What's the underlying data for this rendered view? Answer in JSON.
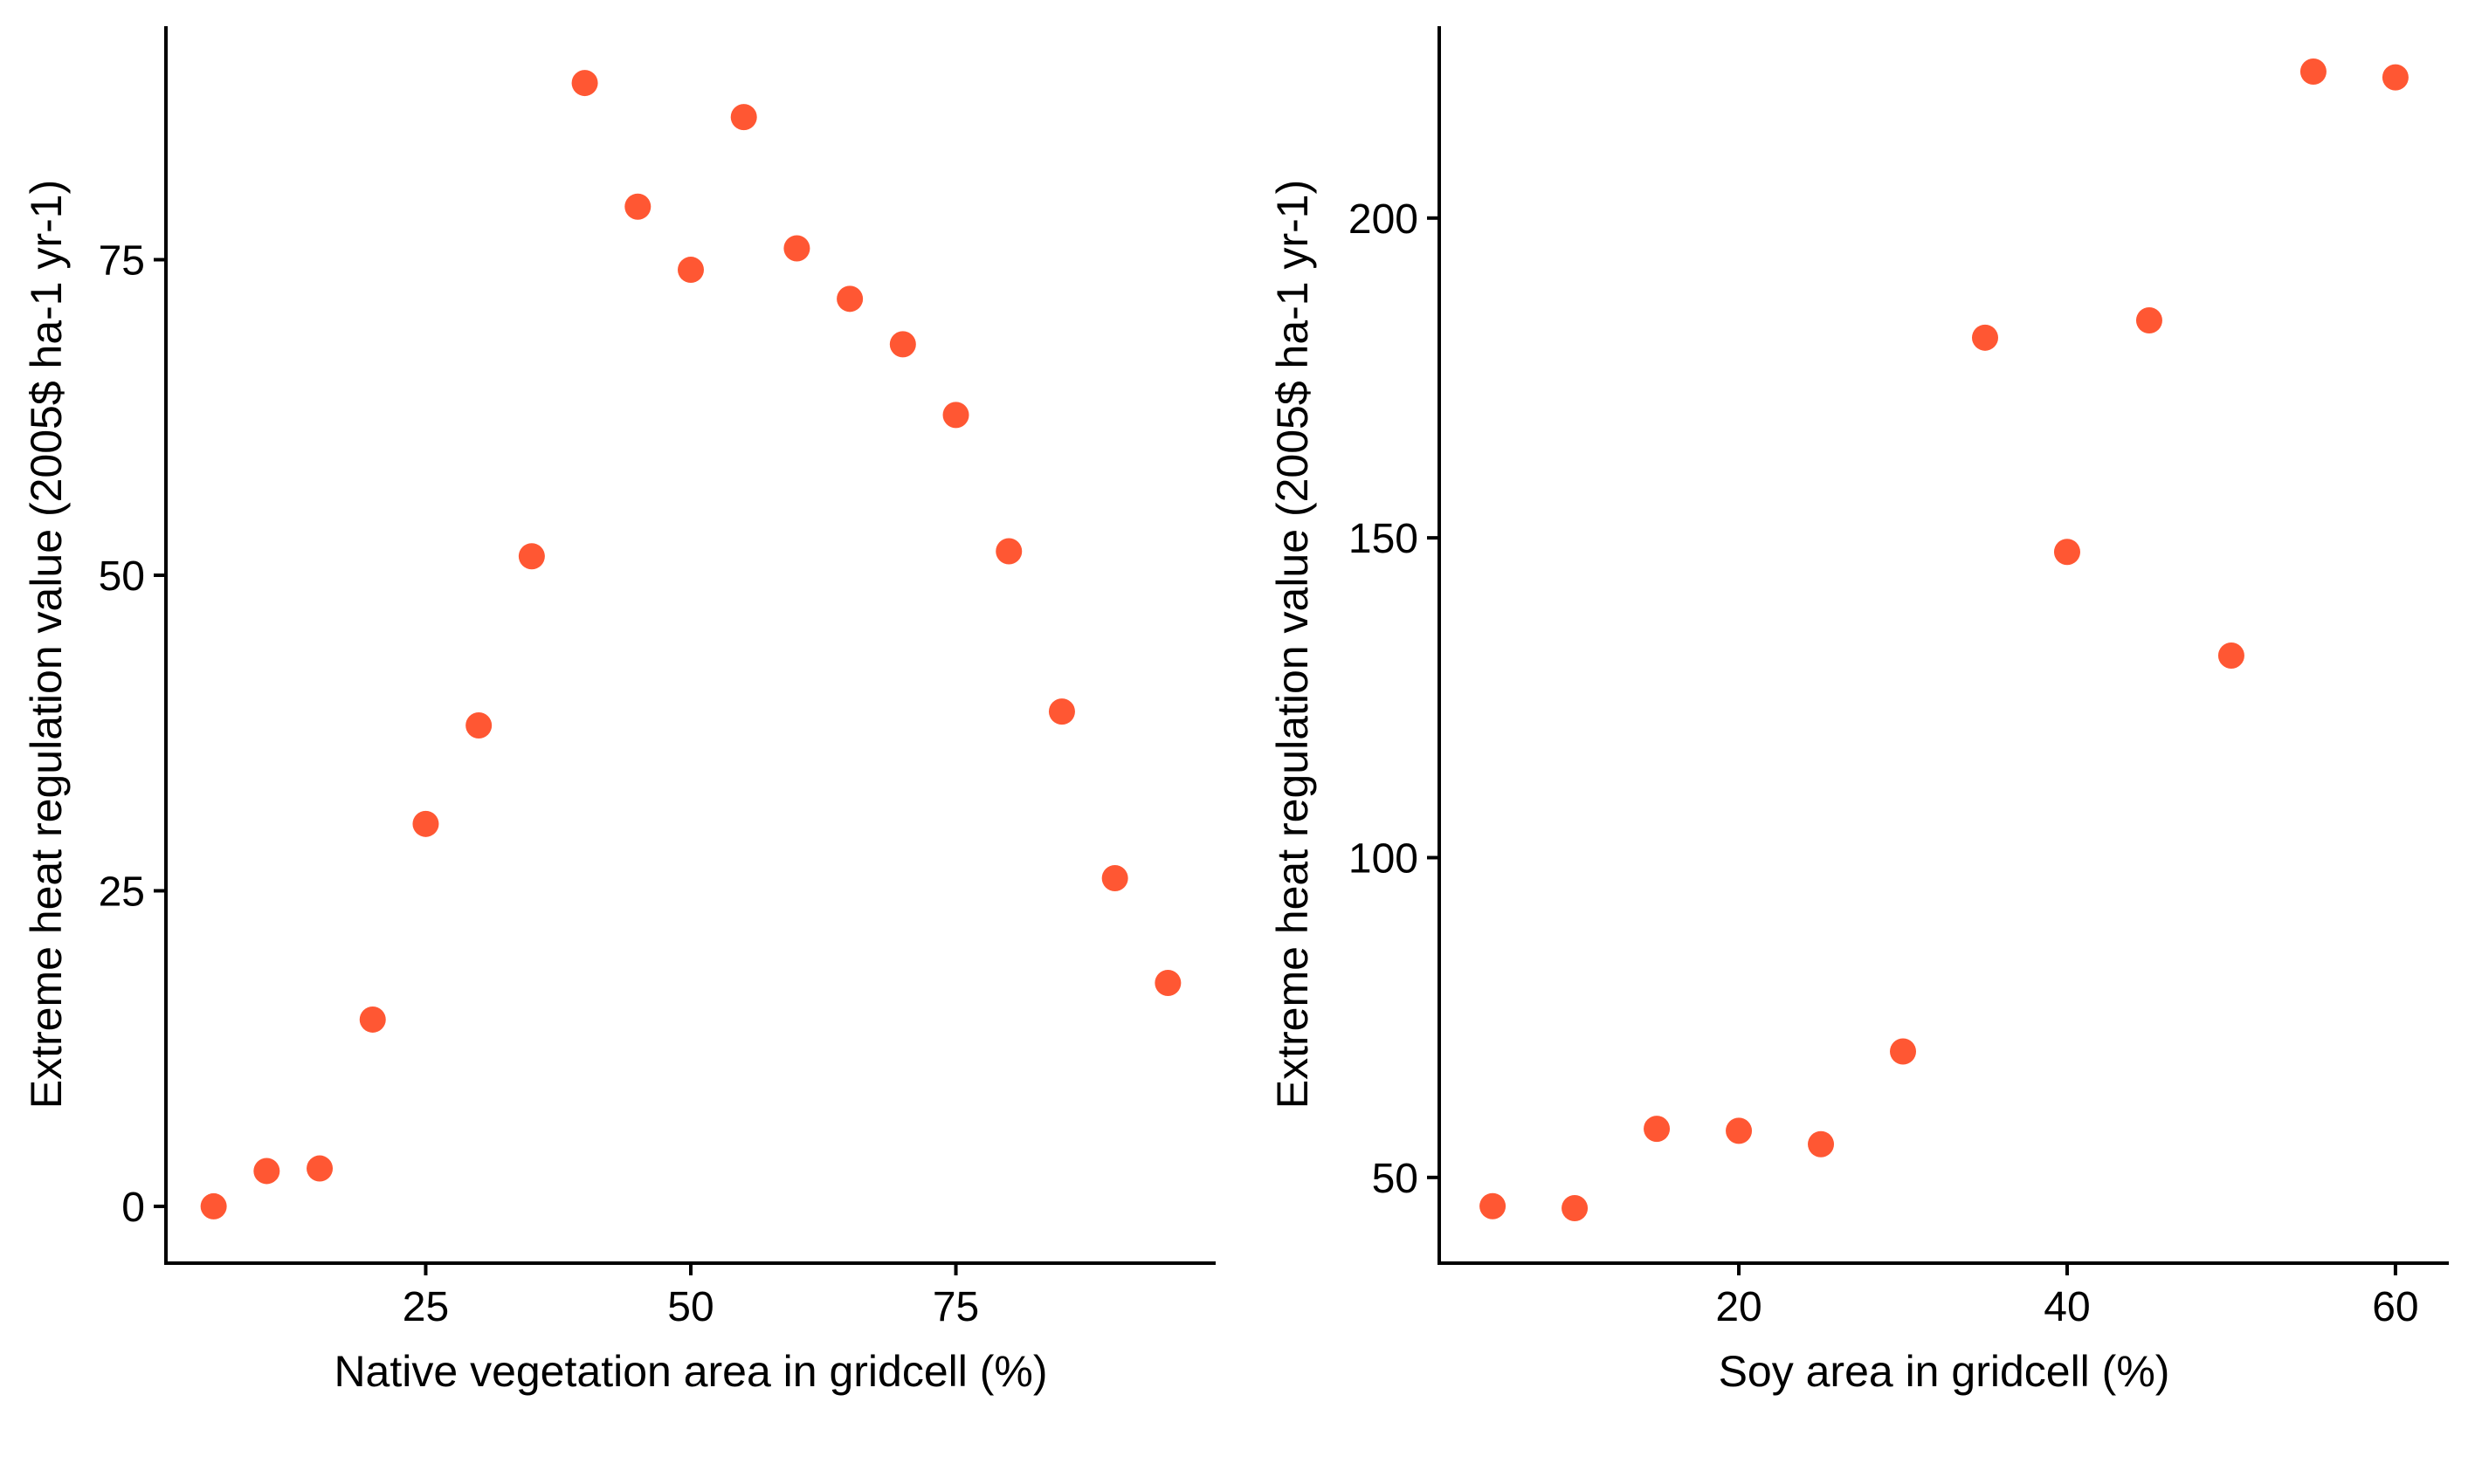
{
  "chart_data": [
    {
      "type": "scatter",
      "xlabel": "Native vegetation area in gridcell (%)",
      "ylabel": "Extreme heat regulation value (2005$ ha-1 yr-1)",
      "xlim": [
        0.5,
        99.5
      ],
      "ylim": [
        -4.5,
        93.5
      ],
      "xticks": [
        25,
        50,
        75
      ],
      "yticks": [
        0,
        25,
        50,
        75
      ],
      "xtick_labels": [
        "25",
        "50",
        "75"
      ],
      "ytick_labels": [
        "0",
        "25",
        "50",
        "75"
      ],
      "grid": false,
      "marker_color": "#FF5733",
      "points": [
        {
          "x": 5,
          "y": 0.0
        },
        {
          "x": 10,
          "y": 2.8
        },
        {
          "x": 15,
          "y": 3.0
        },
        {
          "x": 20,
          "y": 14.8
        },
        {
          "x": 25,
          "y": 30.3
        },
        {
          "x": 30,
          "y": 38.1
        },
        {
          "x": 35,
          "y": 51.5
        },
        {
          "x": 40,
          "y": 89.0
        },
        {
          "x": 45,
          "y": 79.2
        },
        {
          "x": 50,
          "y": 74.2
        },
        {
          "x": 55,
          "y": 86.3
        },
        {
          "x": 60,
          "y": 75.9
        },
        {
          "x": 65,
          "y": 71.9
        },
        {
          "x": 70,
          "y": 68.3
        },
        {
          "x": 75,
          "y": 62.7
        },
        {
          "x": 80,
          "y": 51.9
        },
        {
          "x": 85,
          "y": 39.2
        },
        {
          "x": 90,
          "y": 26.0
        },
        {
          "x": 95,
          "y": 17.7
        }
      ]
    },
    {
      "type": "scatter",
      "xlabel": "Soy area in gridcell (%)",
      "ylabel": "Extreme heat regulation value (2005$ ha-1 yr-1)",
      "xlim": [
        1.75,
        63.25
      ],
      "ylim": [
        36.6,
        230.0
      ],
      "xticks": [
        20,
        40,
        60
      ],
      "yticks": [
        50,
        100,
        150,
        200
      ],
      "xtick_labels": [
        "20",
        "40",
        "60"
      ],
      "ytick_labels": [
        "50",
        "100",
        "150",
        "200"
      ],
      "grid": false,
      "marker_color": "#FF5733",
      "points": [
        {
          "x": 5,
          "y": 45.5
        },
        {
          "x": 10,
          "y": 45.2
        },
        {
          "x": 15,
          "y": 57.6
        },
        {
          "x": 20,
          "y": 57.3
        },
        {
          "x": 25,
          "y": 55.2
        },
        {
          "x": 30,
          "y": 69.7
        },
        {
          "x": 35,
          "y": 181.3
        },
        {
          "x": 40,
          "y": 147.8
        },
        {
          "x": 45,
          "y": 184.0
        },
        {
          "x": 50,
          "y": 131.6
        },
        {
          "x": 55,
          "y": 222.9
        },
        {
          "x": 60,
          "y": 222.0
        }
      ]
    }
  ]
}
